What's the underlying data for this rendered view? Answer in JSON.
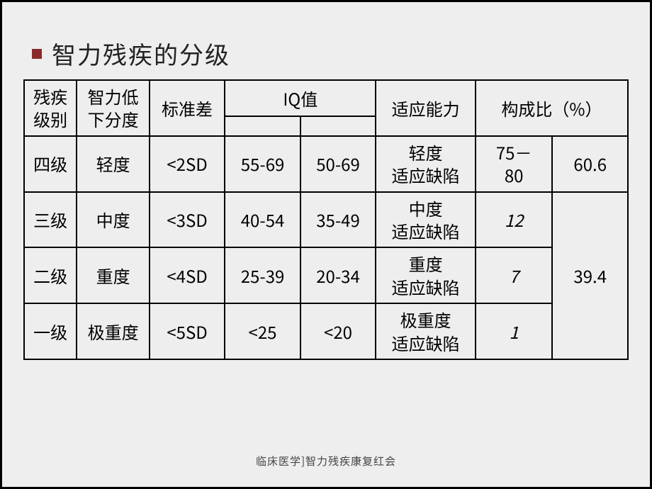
{
  "title": "智力残疾的分级",
  "footer": "临床医学]智力残疾康复红会",
  "headers": {
    "col1": "残疾\n级别",
    "col2": "智力低\n下分度",
    "col3": "标准差",
    "col4": "IQ值",
    "col5": "适应能力",
    "col6": "构成比（%）"
  },
  "rows": [
    {
      "level": "四级",
      "degree": "轻度",
      "sd": "<2SD",
      "iq1": "55-69",
      "iq2": "50-69",
      "adapt": "轻度\n适应缺陷",
      "ratio1": "75－\n80",
      "ratio2": "60.6"
    },
    {
      "level": "三级",
      "degree": "中度",
      "sd": "<3SD",
      "iq1": "40-54",
      "iq2": "35-49",
      "adapt": "中度\n适应缺陷",
      "ratio1": "12"
    },
    {
      "level": "二级",
      "degree": "重度",
      "sd": "<4SD",
      "iq1": "25-39",
      "iq2": "20-34",
      "adapt": "重度\n适应缺陷",
      "ratio1": "7",
      "ratio2": "39.4"
    },
    {
      "level": "一级",
      "degree": "极重度",
      "sd": "<5SD",
      "iq1": "<25",
      "iq2": "<20",
      "adapt": "极重度\n适应缺陷",
      "ratio1": "1"
    }
  ],
  "styles": {
    "background_color": "#eeeeee",
    "border_color": "#000000",
    "bullet_color": "#8a2a2a",
    "title_fontsize": 34,
    "cell_fontsize": 24,
    "footer_fontsize": 15
  }
}
